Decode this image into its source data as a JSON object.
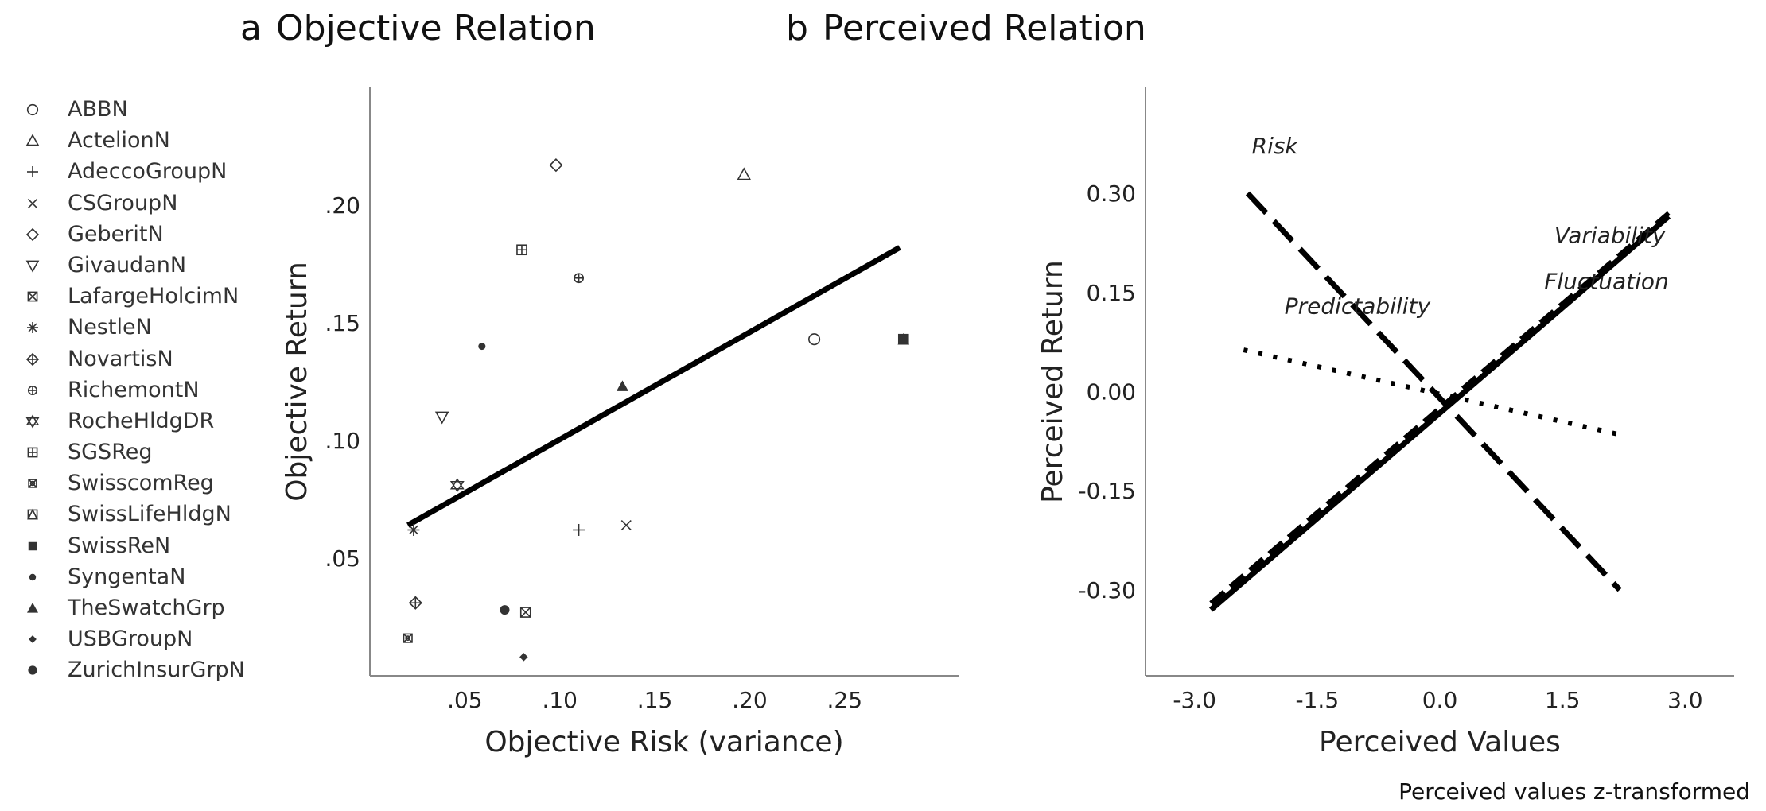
{
  "panels": {
    "a": {
      "tag": "a",
      "title": "Objective Relation"
    },
    "b": {
      "tag": "b",
      "title": "Perceived Relation"
    }
  },
  "footnote": "Perceived values z-transformed",
  "legend": {
    "items": [
      {
        "label": "ABBN",
        "marker": "circle-open"
      },
      {
        "label": "ActelionN",
        "marker": "triangle-up-open"
      },
      {
        "label": "AdeccoGroupN",
        "marker": "plus"
      },
      {
        "label": "CSGroupN",
        "marker": "cross"
      },
      {
        "label": "GeberitN",
        "marker": "diamond-open"
      },
      {
        "label": "GivaudanN",
        "marker": "triangle-down-open"
      },
      {
        "label": "LafargeHolcimN",
        "marker": "square-x"
      },
      {
        "label": "NestleN",
        "marker": "asterisk"
      },
      {
        "label": "NovartisN",
        "marker": "diamond-plus"
      },
      {
        "label": "RichemontN",
        "marker": "circle-plus"
      },
      {
        "label": "RocheHldgDR",
        "marker": "star-of-david"
      },
      {
        "label": "SGSReg",
        "marker": "square-plus"
      },
      {
        "label": "SwisscomReg",
        "marker": "circle-x-box"
      },
      {
        "label": "SwissLifeHldgN",
        "marker": "square-triangle"
      },
      {
        "label": "SwissReN",
        "marker": "square-filled"
      },
      {
        "label": "SyngentaN",
        "marker": "circle-small-filled"
      },
      {
        "label": "TheSwatchGrp",
        "marker": "triangle-filled"
      },
      {
        "label": "USBGroupN",
        "marker": "diamond-filled"
      },
      {
        "label": "ZurichInsurGrpN",
        "marker": "circle-filled"
      }
    ]
  },
  "chart_data": [
    {
      "type": "scatter",
      "panel": "a",
      "title": "Objective Relation",
      "xlabel": "Objective Risk (variance)",
      "ylabel": "Objective Return",
      "xlim": [
        0.0,
        0.31
      ],
      "ylim": [
        0.0,
        0.25
      ],
      "x_ticks": [
        0.05,
        0.1,
        0.15,
        0.2,
        0.25
      ],
      "x_tick_labels": [
        ".05",
        ".10",
        ".15",
        ".20",
        ".25"
      ],
      "y_ticks": [
        0.05,
        0.1,
        0.15,
        0.2
      ],
      "y_tick_labels": [
        ".05",
        ".10",
        ".15",
        ".20"
      ],
      "grid": false,
      "points": [
        {
          "name": "ABBN",
          "x": 0.234,
          "y": 0.143
        },
        {
          "name": "ActelionN",
          "x": 0.197,
          "y": 0.213
        },
        {
          "name": "AdeccoGroupN",
          "x": 0.11,
          "y": 0.062
        },
        {
          "name": "CSGroupN",
          "x": 0.135,
          "y": 0.064
        },
        {
          "name": "GeberitN",
          "x": 0.098,
          "y": 0.217
        },
        {
          "name": "GivaudanN",
          "x": 0.038,
          "y": 0.11
        },
        {
          "name": "LafargeHolcimN",
          "x": 0.082,
          "y": 0.027
        },
        {
          "name": "NestleN",
          "x": 0.023,
          "y": 0.062
        },
        {
          "name": "NovartisN",
          "x": 0.024,
          "y": 0.031
        },
        {
          "name": "RichemontN",
          "x": 0.11,
          "y": 0.169
        },
        {
          "name": "RocheHldgDR",
          "x": 0.046,
          "y": 0.081
        },
        {
          "name": "SGSReg",
          "x": 0.08,
          "y": 0.181
        },
        {
          "name": "SwisscomReg",
          "x": 0.02,
          "y": 0.016
        },
        {
          "name": "SwissLifeHldgN",
          "x": 0.281,
          "y": 0.143
        },
        {
          "name": "SwissReN",
          "x": 0.281,
          "y": 0.143
        },
        {
          "name": "SyngentaN",
          "x": 0.059,
          "y": 0.14
        },
        {
          "name": "TheSwatchGrp",
          "x": 0.133,
          "y": 0.123
        },
        {
          "name": "USBGroupN",
          "x": 0.081,
          "y": 0.008
        },
        {
          "name": "ZurichInsurGrpN",
          "x": 0.071,
          "y": 0.028
        }
      ],
      "fit_line": {
        "x": [
          0.02,
          0.279
        ],
        "y": [
          0.064,
          0.182
        ]
      }
    },
    {
      "type": "line",
      "panel": "b",
      "title": "Perceived Relation",
      "xlabel": "Perceived Values",
      "ylabel": "Perceived Return",
      "xlim": [
        -3.6,
        3.6
      ],
      "ylim": [
        -0.43,
        0.46
      ],
      "x_ticks": [
        -3.0,
        -1.5,
        0.0,
        1.5,
        3.0
      ],
      "x_tick_labels": [
        "-3.0",
        "-1.5",
        "0.0",
        "1.5",
        "3.0"
      ],
      "y_ticks": [
        0.3,
        0.15,
        0.0,
        -0.15,
        -0.3
      ],
      "y_tick_labels": [
        "0.30",
        "0.15",
        "0.00",
        "-0.15",
        "-0.30"
      ],
      "grid": false,
      "series": [
        {
          "name": "Risk",
          "x": [
            -2.35,
            2.2
          ],
          "y": [
            0.3,
            -0.3
          ],
          "dash": "long-dash"
        },
        {
          "name": "Variability",
          "x": [
            -2.8,
            2.8
          ],
          "y": [
            -0.32,
            0.27
          ],
          "dash": "dashed"
        },
        {
          "name": "Fluctuation",
          "x": [
            -2.8,
            2.8
          ],
          "y": [
            -0.33,
            0.265
          ],
          "dash": "solid"
        },
        {
          "name": "Predictability",
          "x": [
            -2.4,
            2.2
          ],
          "y": [
            0.063,
            -0.065
          ],
          "dash": "dotted"
        }
      ],
      "annotations": [
        {
          "text": "Risk",
          "x": -2.3,
          "y": 0.36
        },
        {
          "text": "Variability",
          "x": 1.4,
          "y": 0.225
        },
        {
          "text": "Fluctuation",
          "x": 2.8,
          "y": 0.155
        },
        {
          "text": "Predictability",
          "x": -1.9,
          "y": 0.118
        }
      ]
    }
  ]
}
